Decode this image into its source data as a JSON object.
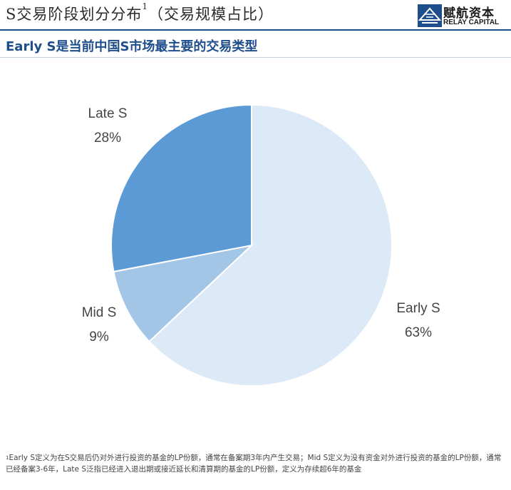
{
  "header": {
    "title": "S交易阶段划分分布",
    "title_sup": "1",
    "title_suffix": "（交易规模占比）",
    "logo_cn": "赋航资本",
    "logo_en": "RELAY CAPITAL",
    "rule_color": "#1f4e8c"
  },
  "subtitle": "Early S是当前中国S市场最主要的交易类型",
  "chart_data": {
    "type": "pie",
    "slices": [
      {
        "name": "Early S",
        "percent_label": "63%",
        "value": 63,
        "color": "#dce9f6"
      },
      {
        "name": "Mid S",
        "percent_label": "9%",
        "value": 9,
        "color": "#a3c5e6"
      },
      {
        "name": "Late S",
        "percent_label": "28%",
        "value": 28,
        "color": "#5b9ad5"
      }
    ],
    "start_angle_deg": 0,
    "direction": "clockwise",
    "legend": "none"
  },
  "footnote": {
    "sup": "1",
    "text": "Early S定义为在S交易后仍对外进行投资的基金的LP份额，通常在备案期3年内产生交易；Mid S定义为没有资金对外进行投资的基金的LP份额，通常已经备案3-6年，Late S泛指已经进入退出期或接近延长和清算期的基金的LP份额，定义为存续超6年的基金"
  }
}
